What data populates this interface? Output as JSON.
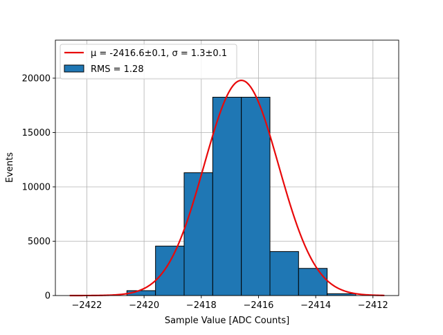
{
  "chart_data": {
    "type": "bar",
    "xlabel": "Sample Value [ADC Counts]",
    "ylabel": "Events",
    "xlim": [
      -2423.1,
      -2411.1
    ],
    "ylim": [
      0,
      23500
    ],
    "grid": true,
    "legend_position": "top-left",
    "x_ticks": [
      -2422,
      -2420,
      -2418,
      -2416,
      -2414,
      -2412
    ],
    "x_tick_labels": [
      "−2422",
      "−2420",
      "−2418",
      "−2416",
      "−2414",
      "−2412"
    ],
    "y_ticks": [
      0,
      5000,
      10000,
      15000,
      20000
    ],
    "y_tick_labels": [
      "0",
      "5000",
      "10000",
      "15000",
      "20000"
    ],
    "histogram": {
      "name": "RMS = 1.28",
      "color": "#1f77b4",
      "edge_color": "#000000",
      "bins": [
        {
          "x0": -2422.6,
          "x1": -2421.6,
          "count": 0
        },
        {
          "x0": -2421.6,
          "x1": -2420.6,
          "count": 0
        },
        {
          "x0": -2420.6,
          "x1": -2419.6,
          "count": 450
        },
        {
          "x0": -2419.6,
          "x1": -2418.6,
          "count": 4550
        },
        {
          "x0": -2418.6,
          "x1": -2417.6,
          "count": 11300
        },
        {
          "x0": -2417.6,
          "x1": -2416.6,
          "count": 18250
        },
        {
          "x0": -2416.6,
          "x1": -2415.6,
          "count": 18250
        },
        {
          "x0": -2415.6,
          "x1": -2414.6,
          "count": 4050
        },
        {
          "x0": -2414.6,
          "x1": -2413.6,
          "count": 2500
        },
        {
          "x0": -2413.6,
          "x1": -2412.6,
          "count": 170
        },
        {
          "x0": -2412.6,
          "x1": -2411.6,
          "count": 0
        }
      ]
    },
    "fit": {
      "name_prefix": "μ = -2416.6±0.1, ",
      "name_suffix": "σ = 1.3±0.1",
      "color": "#e8090a",
      "mu": -2416.6,
      "sigma": 1.3,
      "amplitude": 19800,
      "x_range": [
        -2422.6,
        -2411.6
      ]
    }
  }
}
